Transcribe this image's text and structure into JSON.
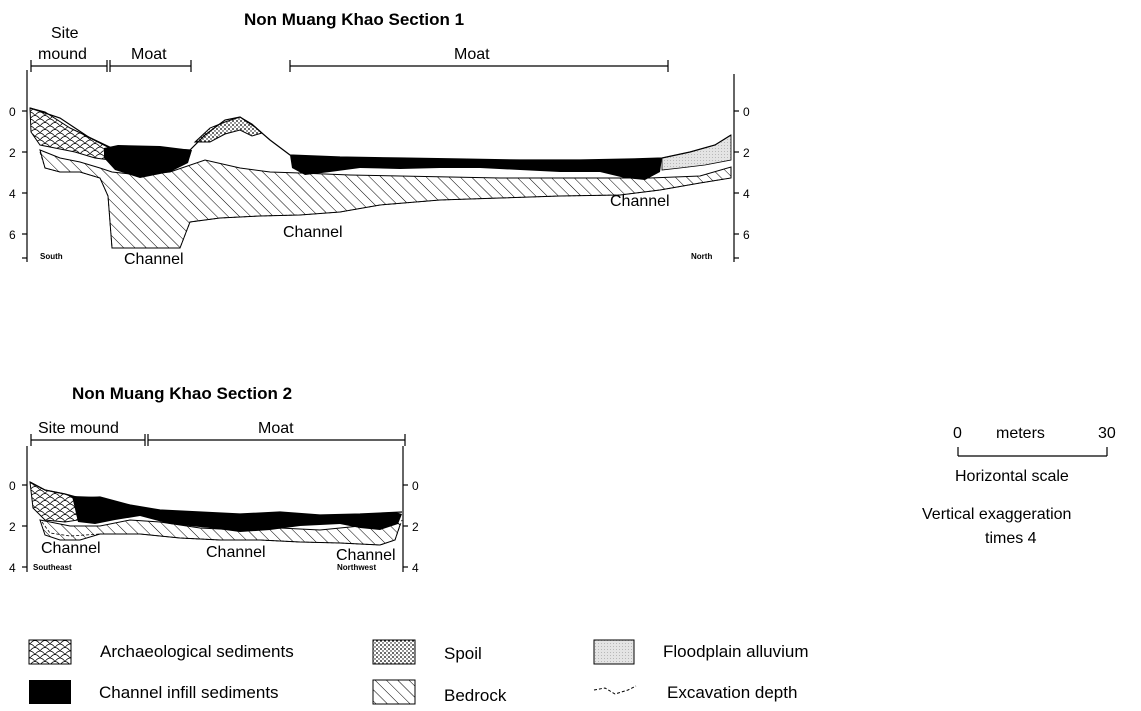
{
  "section1": {
    "title": "Non Muang Khao Section 1",
    "header_site": [
      "Site",
      "mound"
    ],
    "header_moat_left": "Moat",
    "header_moat_right": "Moat",
    "depth_ticks": [
      "0",
      "2",
      "4",
      "6"
    ],
    "label_south": "South",
    "label_north": "North",
    "channel_labels": [
      "Channel",
      "Channel",
      "Channel"
    ]
  },
  "section2": {
    "title": "Non Muang Khao Section 2",
    "header_site": "Site mound",
    "header_moat": "Moat",
    "depth_ticks": [
      "0",
      "2",
      "4"
    ],
    "label_southeast": "Southeast",
    "label_northwest": "Northwest",
    "channel_labels": [
      "Channel",
      "Channel",
      "Channel"
    ]
  },
  "scale": {
    "start": "0",
    "unit": "meters",
    "end": "30",
    "caption": "Horizontal scale",
    "exaggeration_line1": "Vertical exaggeration",
    "exaggeration_line2": "times 4"
  },
  "legend": [
    {
      "key": "archaeological",
      "label": "Archaeological sediments"
    },
    {
      "key": "spoil",
      "label": "Spoil"
    },
    {
      "key": "floodplain",
      "label": "Floodplain alluvium"
    },
    {
      "key": "channel",
      "label": "Channel infill sediments"
    },
    {
      "key": "bedrock",
      "label": "Bedrock"
    },
    {
      "key": "excavation",
      "label": "Excavation depth"
    }
  ]
}
